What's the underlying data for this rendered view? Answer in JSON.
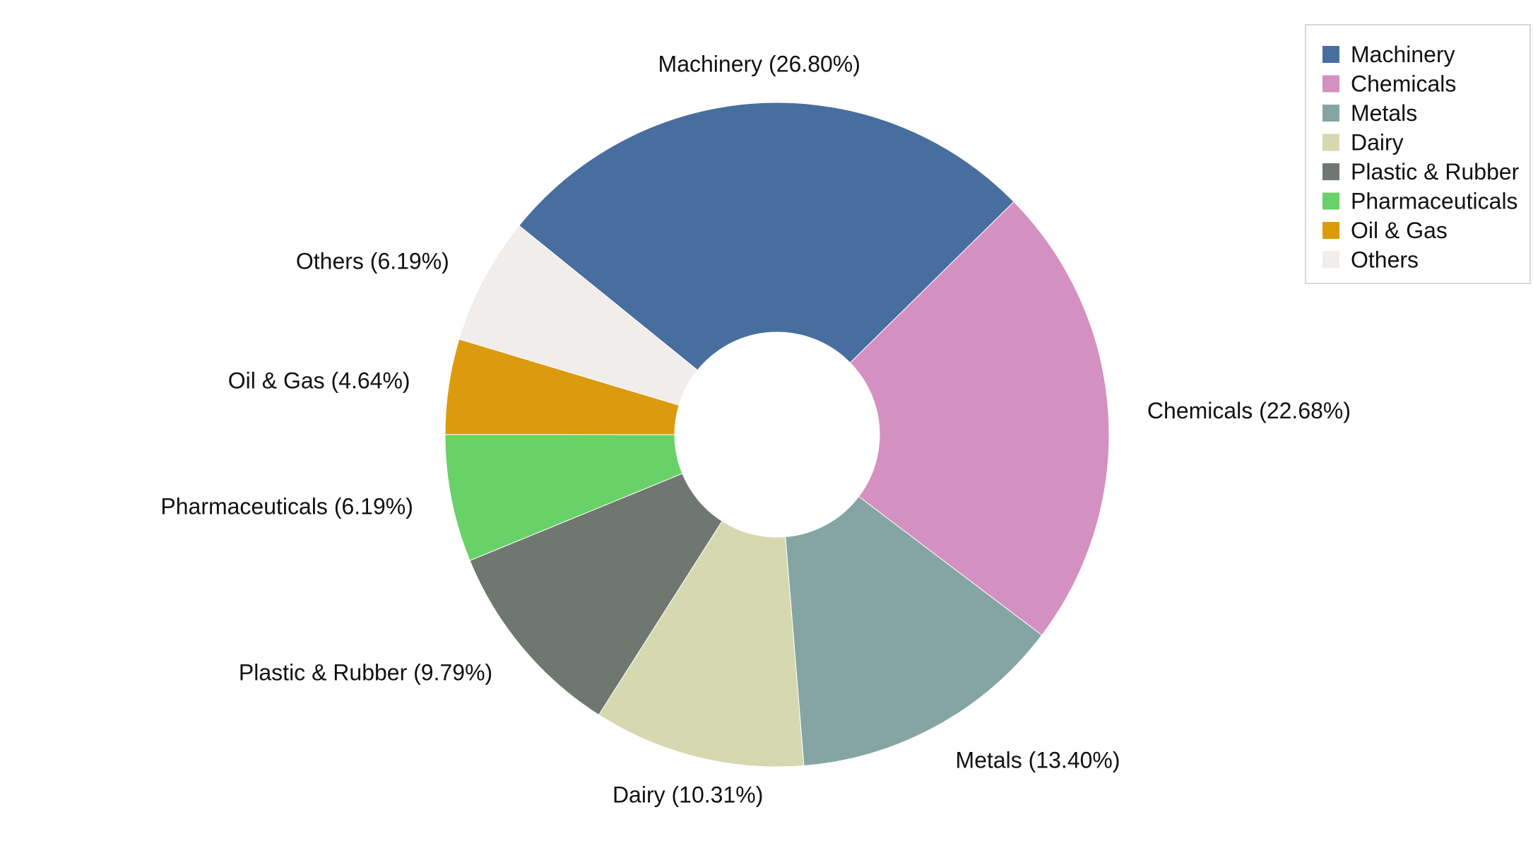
{
  "chart_data": {
    "type": "pie",
    "style": "donut",
    "title": "",
    "slices": [
      {
        "label": "Machinery",
        "value": 26.8,
        "display": "Machinery (26.80%)",
        "color": "#486ea0"
      },
      {
        "label": "Chemicals",
        "value": 22.68,
        "display": "Chemicals (22.68%)",
        "color": "#d490c1"
      },
      {
        "label": "Metals",
        "value": 13.4,
        "display": "Metals (13.40%)",
        "color": "#84a5a3"
      },
      {
        "label": "Dairy",
        "value": 10.31,
        "display": "Dairy (10.31%)",
        "color": "#d6d8b0"
      },
      {
        "label": "Plastic & Rubber",
        "value": 9.79,
        "display": "Plastic & Rubber (9.79%)",
        "color": "#707670"
      },
      {
        "label": "Pharmaceuticals",
        "value": 6.19,
        "display": "Pharmaceuticals (6.19%)",
        "color": "#68d168"
      },
      {
        "label": "Oil & Gas",
        "value": 4.64,
        "display": "Oil & Gas (4.64%)",
        "color": "#dc9b0e"
      },
      {
        "label": "Others",
        "value": 6.19,
        "display": "Others (6.19%)",
        "color": "#f0edea"
      }
    ],
    "legend_position": "top-right"
  }
}
